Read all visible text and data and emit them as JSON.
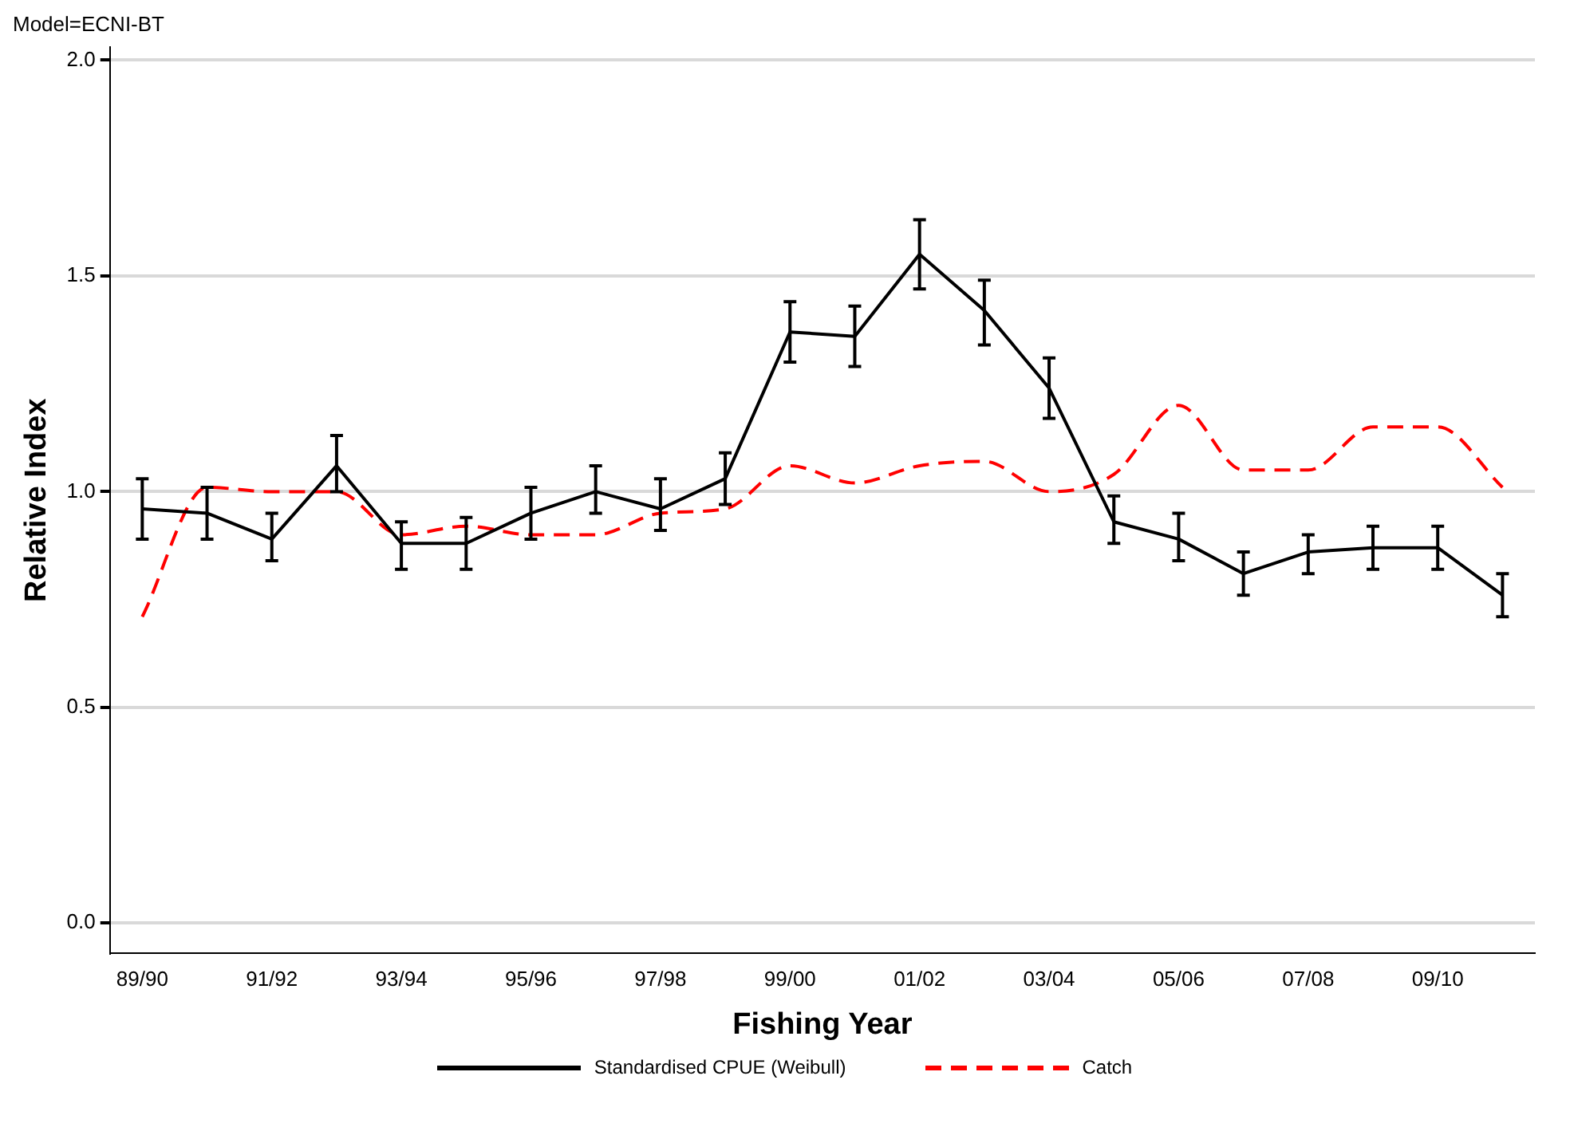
{
  "chart_data": {
    "type": "line",
    "title": "Model=ECNI-BT",
    "xlabel": "Fishing Year",
    "ylabel": "Relative Index",
    "categories": [
      "89/90",
      null,
      "91/92",
      null,
      "93/94",
      null,
      "95/96",
      null,
      "97/98",
      null,
      "99/00",
      null,
      "01/02",
      null,
      "03/04",
      null,
      "05/06",
      null,
      "07/08",
      null,
      "09/10",
      null
    ],
    "series": [
      {
        "name": "Standardised CPUE (Weibull)",
        "color": "#000000",
        "line_style": "solid",
        "values": [
          0.96,
          0.95,
          0.89,
          1.06,
          0.88,
          0.88,
          0.95,
          1.0,
          0.96,
          1.03,
          1.37,
          1.36,
          1.55,
          1.42,
          1.24,
          0.93,
          0.89,
          0.81,
          0.86,
          0.87,
          0.87,
          0.76
        ],
        "errors": [
          [
            0.89,
            1.03
          ],
          [
            0.89,
            1.01
          ],
          [
            0.84,
            0.95
          ],
          [
            1.0,
            1.13
          ],
          [
            0.82,
            0.93
          ],
          [
            0.82,
            0.94
          ],
          [
            0.89,
            1.01
          ],
          [
            0.95,
            1.06
          ],
          [
            0.91,
            1.03
          ],
          [
            0.97,
            1.09
          ],
          [
            1.3,
            1.44
          ],
          [
            1.29,
            1.43
          ],
          [
            1.47,
            1.63
          ],
          [
            1.34,
            1.49
          ],
          [
            1.17,
            1.31
          ],
          [
            0.88,
            0.99
          ],
          [
            0.84,
            0.95
          ],
          [
            0.76,
            0.86
          ],
          [
            0.81,
            0.9
          ],
          [
            0.82,
            0.92
          ],
          [
            0.82,
            0.92
          ],
          [
            0.71,
            0.81
          ]
        ]
      },
      {
        "name": "Catch",
        "color": "#ff0000",
        "line_style": "dashed",
        "values": [
          0.71,
          1.01,
          1.0,
          1.0,
          0.9,
          0.92,
          0.9,
          0.9,
          0.95,
          0.96,
          1.06,
          1.02,
          1.06,
          1.07,
          1.0,
          1.04,
          1.2,
          1.05,
          1.05,
          1.15,
          1.15,
          1.01
        ]
      }
    ],
    "ylim": [
      -0.07,
      2.03
    ],
    "yticks": [
      {
        "value": 0,
        "label": "0.0"
      },
      {
        "value": 0.5,
        "label": "0.5"
      },
      {
        "value": 1,
        "label": "1.0"
      },
      {
        "value": 1.5,
        "label": "1.5"
      },
      {
        "value": 2,
        "label": "2.0"
      }
    ],
    "grid": "y",
    "legend": "bottom",
    "marker": "none"
  }
}
